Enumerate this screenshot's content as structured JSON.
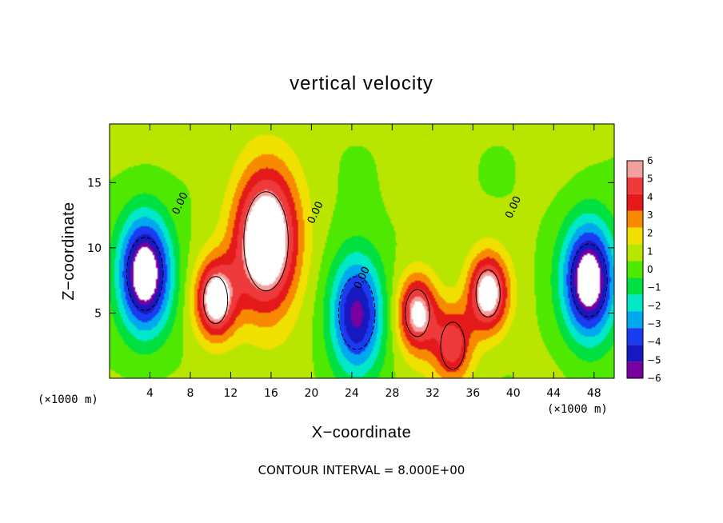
{
  "chart_data": {
    "type": "heatmap",
    "title": "vertical velocity",
    "xlabel": "X−coordinate",
    "ylabel": "Z−coordinate",
    "x_unit": "(×1000 m)",
    "x_unit_right": "(×1000 m)",
    "xlim": [
      0,
      50
    ],
    "ylim": [
      0,
      19.5
    ],
    "x_ticks": [
      4,
      8,
      12,
      16,
      20,
      24,
      28,
      32,
      36,
      40,
      44,
      48
    ],
    "x_tick_labels": [
      "4",
      "8",
      "12",
      "16",
      "20",
      "24",
      "28",
      "32",
      "36",
      "40",
      "44",
      "48"
    ],
    "y_ticks": [
      5,
      10,
      15
    ],
    "y_tick_labels": [
      "5",
      "10",
      "15"
    ],
    "colorbar": {
      "min": -6,
      "max": 6,
      "ticks": [
        "6",
        "5",
        "4",
        "3",
        "2",
        "1",
        "0",
        "−1",
        "−2",
        "−3",
        "−4",
        "−5",
        "−6"
      ],
      "colors": [
        "#f4a0a0",
        "#ee3a3a",
        "#e41a1a",
        "#f88a00",
        "#f0e000",
        "#b8e600",
        "#4ee800",
        "#00e040",
        "#00e8c8",
        "#00a8f0",
        "#1a3cf0",
        "#1818c0",
        "#7800a0"
      ]
    },
    "features": [
      {
        "kind": "updraft",
        "x": 15.5,
        "z": 10.5,
        "peak": 8.0
      },
      {
        "kind": "updraft",
        "x": 10.5,
        "z": 6.0,
        "peak": 6.5
      },
      {
        "kind": "updraft",
        "x": 30.5,
        "z": 5.0,
        "peak": 6.0
      },
      {
        "kind": "updraft",
        "x": 37.5,
        "z": 6.5,
        "peak": 6.5
      },
      {
        "kind": "updraft",
        "x": 34.0,
        "z": 2.5,
        "peak": 4.5
      },
      {
        "kind": "downdraft",
        "x": 3.5,
        "z": 8.0,
        "peak": -8.0
      },
      {
        "kind": "downdraft",
        "x": 24.5,
        "z": 5.0,
        "peak": -6.5
      },
      {
        "kind": "downdraft",
        "x": 47.5,
        "z": 7.5,
        "peak": -8.0
      }
    ],
    "contour_labels": [
      "0.00",
      "0.00",
      "0.00",
      "0.00"
    ]
  },
  "footer": {
    "contour_interval": "CONTOUR INTERVAL = 8.000E+00"
  }
}
